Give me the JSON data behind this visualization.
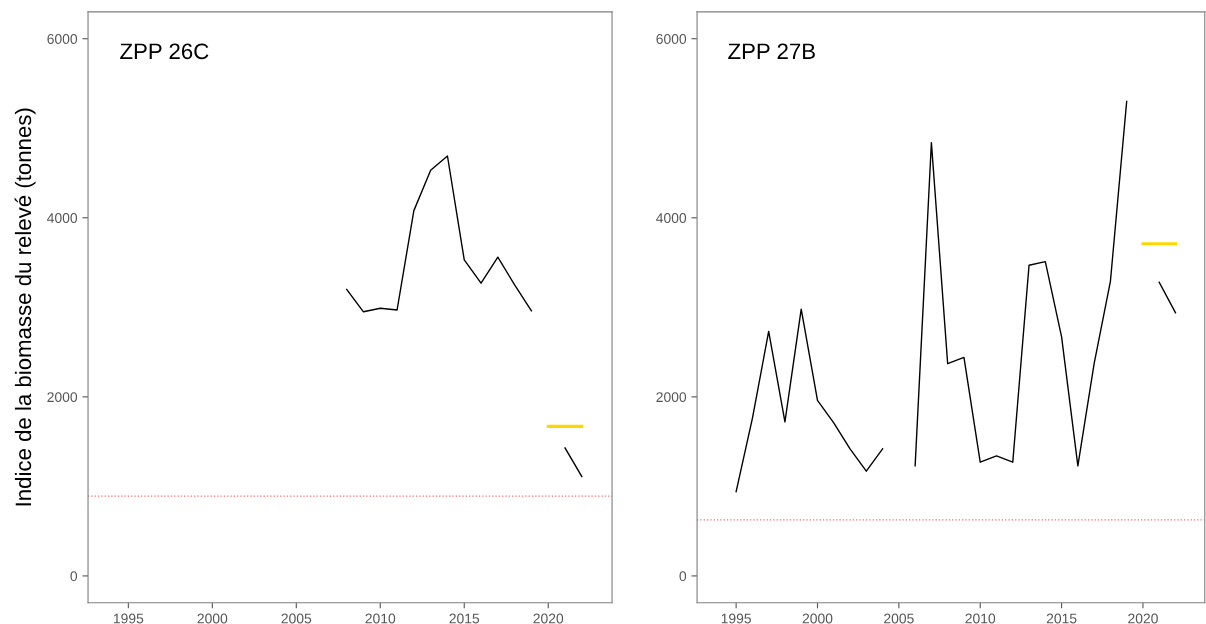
{
  "chart_data": [
    {
      "type": "line",
      "title": "ZPP 26C",
      "ylabel": "Indice de la biomasse du relevé (tonnes)",
      "xlim": [
        1992.6,
        2023.8
      ],
      "xticks": [
        1995,
        2000,
        2005,
        2010,
        2015,
        2020
      ],
      "ylim": [
        -300,
        6300
      ],
      "yticks": [
        0,
        2000,
        4000,
        6000
      ],
      "grid": false,
      "marker": "none",
      "line_style": "solid",
      "series": [
        {
          "color": "#000000",
          "x": [
            2008,
            2009,
            2010,
            2011,
            2012,
            2013,
            2014,
            2015,
            2016,
            2017,
            2018,
            2019,
            2020,
            2021,
            2022
          ],
          "values": [
            3200,
            2950,
            2990,
            2970,
            4080,
            4530,
            4690,
            3530,
            3270,
            3560,
            3250,
            2960,
            null,
            1430,
            1110
          ]
        },
        {
          "color": "#ffd700",
          "x": [
            2020,
            2022
          ],
          "values": [
            1670,
            1670
          ]
        }
      ],
      "ref_lines": [
        {
          "axis": "y",
          "value": 890,
          "color": "#ff6666",
          "line_style": "dotted"
        }
      ]
    },
    {
      "type": "line",
      "title": "ZPP 27B",
      "xlim": [
        1992.6,
        2023.8
      ],
      "xticks": [
        1995,
        2000,
        2005,
        2010,
        2015,
        2020
      ],
      "ylim": [
        -300,
        6300
      ],
      "yticks": [
        0,
        2000,
        4000,
        6000
      ],
      "grid": false,
      "marker": "none",
      "line_style": "solid",
      "series": [
        {
          "color": "#000000",
          "x": [
            1995,
            1996,
            1997,
            1998,
            1999,
            2000,
            2001,
            2002,
            2003,
            2004,
            2005,
            2006,
            2007,
            2008,
            2009,
            2010,
            2011,
            2012,
            2013,
            2014,
            2015,
            2016,
            2017,
            2018,
            2019,
            2020,
            2021,
            2022
          ],
          "values": [
            940,
            1760,
            2730,
            1720,
            2980,
            1960,
            1710,
            1420,
            1170,
            1420,
            null,
            1230,
            4840,
            2370,
            2440,
            1270,
            1340,
            1270,
            3470,
            3510,
            2670,
            1230,
            2370,
            3290,
            5300,
            null,
            3280,
            2940
          ]
        },
        {
          "color": "#ffd700",
          "x": [
            2020,
            2022
          ],
          "values": [
            3710,
            3710
          ]
        }
      ],
      "ref_lines": [
        {
          "axis": "y",
          "value": 625,
          "color": "#ff6666",
          "line_style": "dotted"
        }
      ]
    }
  ]
}
